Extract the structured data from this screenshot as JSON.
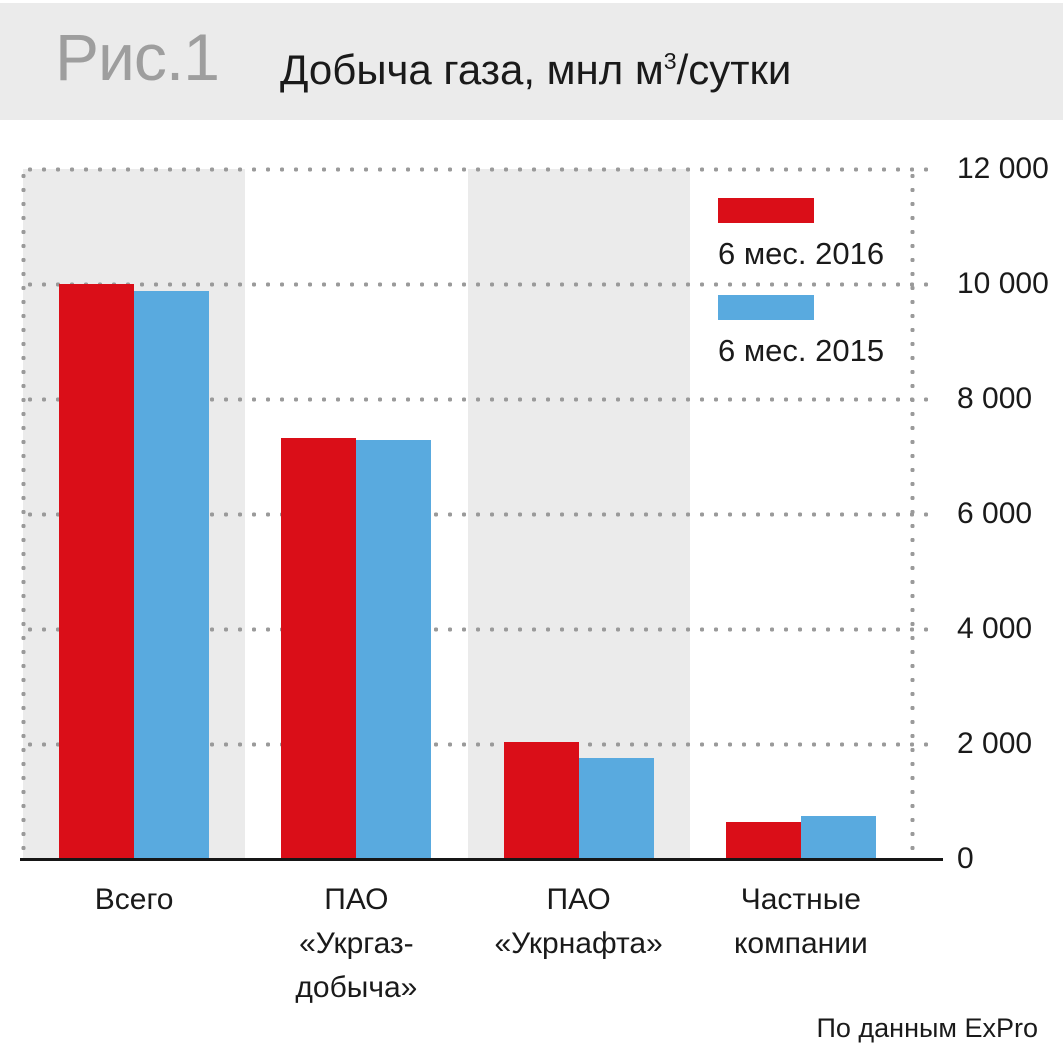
{
  "header": {
    "figure_label": "Рис.1",
    "title_main": "Добыча газа, мнл м",
    "title_sup": "3",
    "title_tail": "/сутки"
  },
  "chart_data": {
    "type": "bar",
    "title": "Добыча газа, мнл м3/сутки",
    "categories": [
      "Всего",
      "ПАО «Укргаз-добыча»",
      "ПАО «Укрнафта»",
      "Частные компании"
    ],
    "category_label_lines": [
      [
        "Всего"
      ],
      [
        "ПАО",
        "«Укргаз-",
        "добыча»"
      ],
      [
        "ПАО",
        "«Укрнафта»"
      ],
      [
        "Частные",
        "компании"
      ]
    ],
    "series": [
      {
        "name": "6 мес. 2016",
        "color": "#da0e18",
        "values": [
          10000,
          7320,
          2030,
          640
        ]
      },
      {
        "name": "6 мес. 2015",
        "color": "#59aadf",
        "values": [
          9870,
          7290,
          1760,
          750
        ]
      }
    ],
    "ylim": [
      0,
      12000
    ],
    "ytick_step": 2000,
    "ytick_labels": [
      "0",
      "2 000",
      "4 000",
      "6 000",
      "8 000",
      "10 000",
      "12 000"
    ],
    "grid": "dotted horizontal + dotted vertical plot borders",
    "legend_position": "inside-top-right",
    "shaded_category_indexes": [
      0,
      2
    ]
  },
  "footer": {
    "source": "По данным ExPro"
  },
  "colors": {
    "header_bg": "#ebebeb",
    "band_bg": "#ebebeb",
    "grid_dots": "#9a9a9a",
    "axis": "#161616",
    "figure_label": "#9e9e9e",
    "text": "#1a1a1a",
    "series_2016": "#da0e18",
    "series_2015": "#59aadf"
  }
}
